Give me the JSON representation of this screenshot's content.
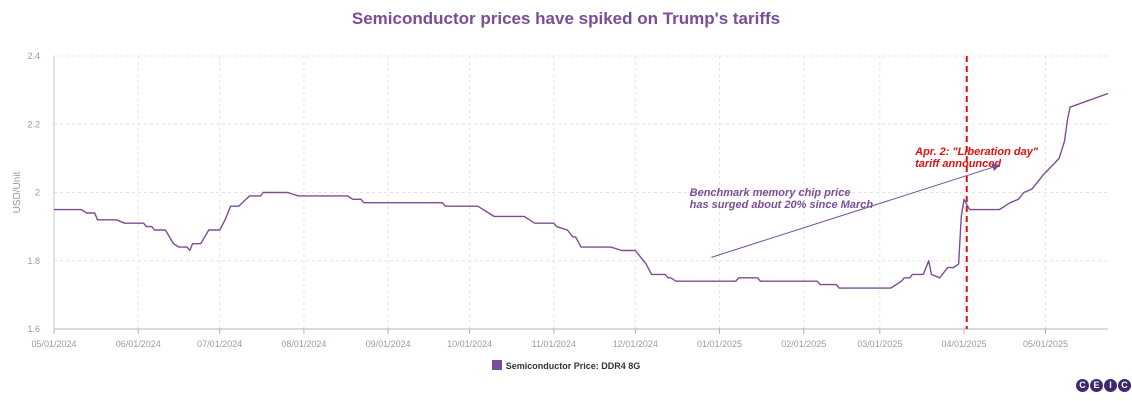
{
  "chart_data": {
    "type": "line",
    "title": "Semiconductor prices have spiked on Trump's tariffs",
    "xlabel": "",
    "ylabel": "USD/Unit",
    "ylim": [
      1.6,
      2.4
    ],
    "yticks": [
      1.6,
      1.8,
      2,
      2.2,
      2.4
    ],
    "ytick_labels": [
      "1.6",
      "1.8",
      "2",
      "2.2",
      "2.4"
    ],
    "xlim": [
      "2024-05-01",
      "2025-05-24"
    ],
    "xticks": [
      "05/01/2024",
      "06/01/2024",
      "07/01/2024",
      "08/01/2024",
      "09/01/2024",
      "10/01/2024",
      "11/01/2024",
      "12/01/2024",
      "01/01/2025",
      "02/01/2025",
      "03/01/2025",
      "04/01/2025",
      "05/01/2025"
    ],
    "grid": true,
    "legend": "bottom-center",
    "series": [
      {
        "name": "Semiconductor Price: DDR4 8G",
        "color": "#7b4d97",
        "points": [
          [
            "2024-05-01",
            1.95
          ],
          [
            "2024-05-11",
            1.95
          ],
          [
            "2024-05-13",
            1.94
          ],
          [
            "2024-05-16",
            1.94
          ],
          [
            "2024-05-17",
            1.92
          ],
          [
            "2024-05-24",
            1.92
          ],
          [
            "2024-05-27",
            1.91
          ],
          [
            "2024-06-03",
            1.91
          ],
          [
            "2024-06-04",
            1.9
          ],
          [
            "2024-06-06",
            1.9
          ],
          [
            "2024-06-07",
            1.89
          ],
          [
            "2024-06-11",
            1.89
          ],
          [
            "2024-06-14",
            1.85
          ],
          [
            "2024-06-16",
            1.84
          ],
          [
            "2024-06-19",
            1.84
          ],
          [
            "2024-06-20",
            1.83
          ],
          [
            "2024-06-21",
            1.85
          ],
          [
            "2024-06-24",
            1.85
          ],
          [
            "2024-06-27",
            1.89
          ],
          [
            "2024-07-01",
            1.89
          ],
          [
            "2024-07-03",
            1.92
          ],
          [
            "2024-07-05",
            1.96
          ],
          [
            "2024-07-08",
            1.96
          ],
          [
            "2024-07-12",
            1.99
          ],
          [
            "2024-07-16",
            1.99
          ],
          [
            "2024-07-17",
            2.0
          ],
          [
            "2024-07-26",
            2.0
          ],
          [
            "2024-07-30",
            1.99
          ],
          [
            "2024-08-15",
            1.99
          ],
          [
            "2024-08-17",
            1.99
          ],
          [
            "2024-08-19",
            1.98
          ],
          [
            "2024-08-22",
            1.98
          ],
          [
            "2024-08-23",
            1.97
          ],
          [
            "2024-09-21",
            1.97
          ],
          [
            "2024-09-22",
            1.96
          ],
          [
            "2024-10-04",
            1.96
          ],
          [
            "2024-10-08",
            1.94
          ],
          [
            "2024-10-10",
            1.93
          ],
          [
            "2024-10-21",
            1.93
          ],
          [
            "2024-10-23",
            1.92
          ],
          [
            "2024-10-25",
            1.91
          ],
          [
            "2024-11-01",
            1.91
          ],
          [
            "2024-11-02",
            1.9
          ],
          [
            "2024-11-06",
            1.89
          ],
          [
            "2024-11-08",
            1.87
          ],
          [
            "2024-11-09",
            1.87
          ],
          [
            "2024-11-11",
            1.84
          ],
          [
            "2024-11-16",
            1.84
          ],
          [
            "2024-11-22",
            1.84
          ],
          [
            "2024-11-26",
            1.83
          ],
          [
            "2024-11-29",
            1.83
          ],
          [
            "2024-12-01",
            1.83
          ],
          [
            "2024-12-02",
            1.82
          ],
          [
            "2024-12-03",
            1.81
          ],
          [
            "2024-12-05",
            1.79
          ],
          [
            "2024-12-07",
            1.76
          ],
          [
            "2024-12-12",
            1.76
          ],
          [
            "2024-12-13",
            1.75
          ],
          [
            "2024-12-14",
            1.75
          ],
          [
            "2024-12-16",
            1.74
          ],
          [
            "2024-12-24",
            1.74
          ],
          [
            "2024-12-31",
            1.74
          ],
          [
            "2025-01-07",
            1.74
          ],
          [
            "2025-01-08",
            1.75
          ],
          [
            "2025-01-15",
            1.75
          ],
          [
            "2025-01-16",
            1.74
          ],
          [
            "2025-02-04",
            1.74
          ],
          [
            "2025-02-06",
            1.74
          ],
          [
            "2025-02-07",
            1.73
          ],
          [
            "2025-02-13",
            1.73
          ],
          [
            "2025-02-14",
            1.72
          ],
          [
            "2025-02-28",
            1.72
          ],
          [
            "2025-03-01",
            1.72
          ],
          [
            "2025-03-05",
            1.72
          ],
          [
            "2025-03-09",
            1.74
          ],
          [
            "2025-03-10",
            1.75
          ],
          [
            "2025-03-12",
            1.75
          ],
          [
            "2025-03-13",
            1.76
          ],
          [
            "2025-03-17",
            1.76
          ],
          [
            "2025-03-19",
            1.8
          ],
          [
            "2025-03-20",
            1.76
          ],
          [
            "2025-03-23",
            1.75
          ],
          [
            "2025-03-26",
            1.78
          ],
          [
            "2025-03-28",
            1.78
          ],
          [
            "2025-03-30",
            1.79
          ],
          [
            "2025-03-31",
            1.93
          ],
          [
            "2025-04-01",
            1.98
          ],
          [
            "2025-04-03",
            1.95
          ],
          [
            "2025-04-14",
            1.95
          ],
          [
            "2025-04-16",
            1.96
          ],
          [
            "2025-04-18",
            1.97
          ],
          [
            "2025-04-21",
            1.98
          ],
          [
            "2025-04-23",
            2.0
          ],
          [
            "2025-04-26",
            2.01
          ],
          [
            "2025-04-28",
            2.03
          ],
          [
            "2025-04-30",
            2.05
          ],
          [
            "2025-05-06",
            2.1
          ],
          [
            "2025-05-08",
            2.15
          ],
          [
            "2025-05-09",
            2.21
          ],
          [
            "2025-05-10",
            2.25
          ],
          [
            "2025-05-24",
            2.29
          ]
        ]
      }
    ],
    "annotations": [
      {
        "kind": "vline",
        "x": "2025-04-02",
        "color": "#e01010",
        "style": "dashed"
      },
      {
        "kind": "text",
        "lines": [
          "Apr. 2: \"Liberation day\"",
          "tariff announced"
        ],
        "color": "#e01010",
        "anchor_x": "2025-03-14",
        "anchor_y": 2.11
      },
      {
        "kind": "text",
        "lines": [
          "Benchmark memory chip price",
          "has surged about 20% since March"
        ],
        "color": "#7b4d97",
        "anchor_x": "2024-12-21",
        "anchor_y": 1.99
      },
      {
        "kind": "arrow",
        "from": [
          "2024-12-29",
          1.81
        ],
        "to": [
          "2025-04-14",
          2.08
        ],
        "color": "#7b4d97"
      }
    ]
  },
  "legend_label": "Semiconductor Price: DDR4 8G",
  "logo_letters": [
    "C",
    "E",
    "I",
    "C"
  ]
}
